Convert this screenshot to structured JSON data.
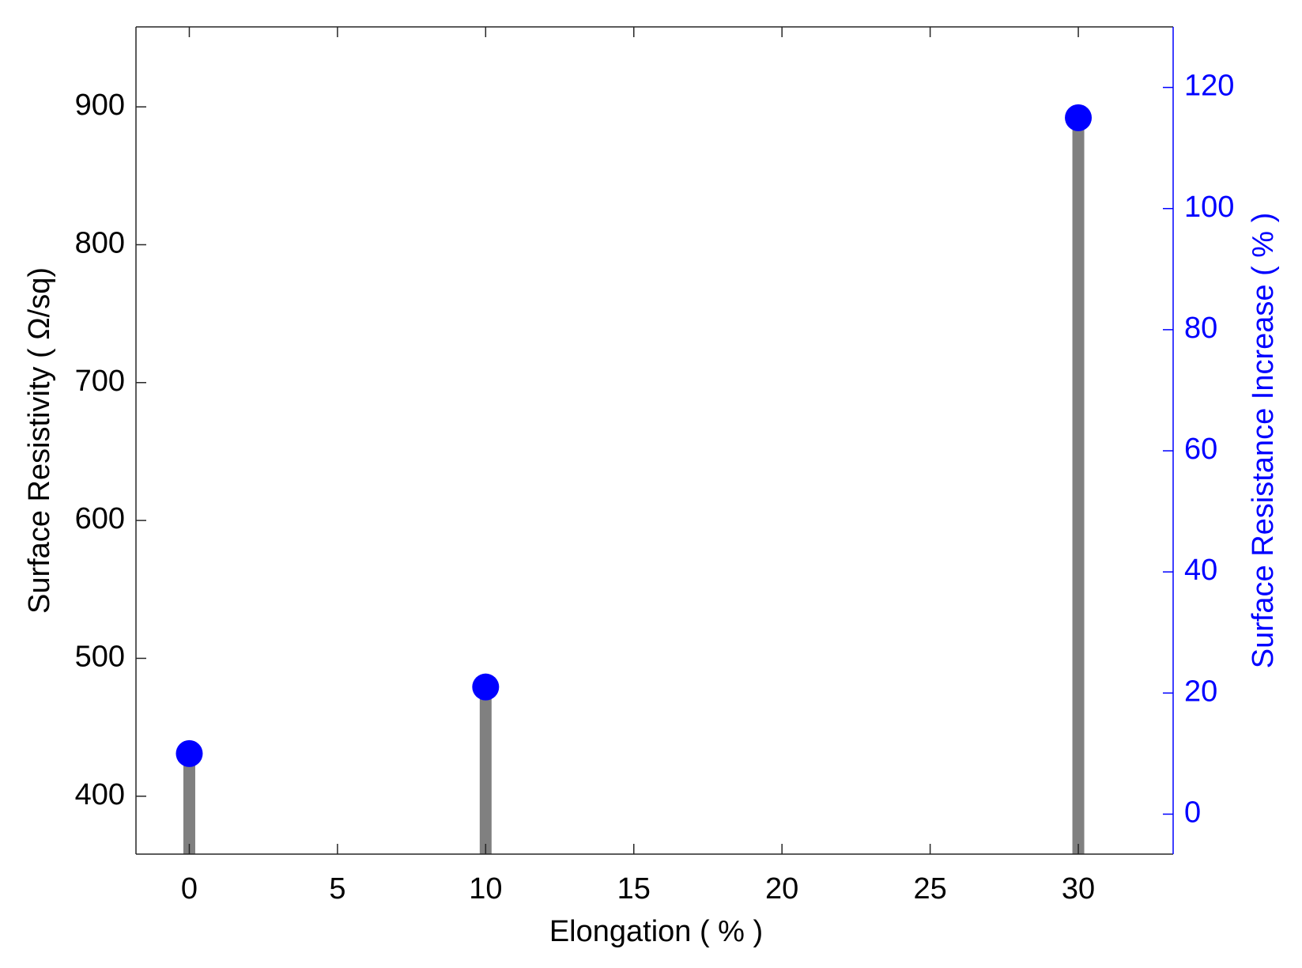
{
  "chart_data": {
    "type": "bar",
    "x_label": "Elongation ( % )",
    "y_label": "Surface Resistivity ( Ω/sq)",
    "y2_label": "Surface Resistance Increase ( % )",
    "x": [
      0,
      10,
      30
    ],
    "series": [
      {
        "style": "bar",
        "color": "#808080",
        "values": [
          431,
          480,
          890
        ]
      },
      {
        "style": "marker",
        "axis": "y2",
        "color": "#0000ff",
        "values": [
          10,
          21,
          115
        ]
      }
    ],
    "xlim": [
      -1.8,
      33.2
    ],
    "xticks": [
      0,
      5,
      10,
      15,
      20,
      25,
      30
    ],
    "ylim": [
      358,
      958
    ],
    "yticks": [
      400,
      500,
      600,
      700,
      800,
      900
    ],
    "y2lim": [
      -6.6,
      130
    ],
    "y2ticks": [
      0,
      20,
      40,
      60,
      80,
      100,
      120
    ],
    "y2_color": "#0000ff",
    "grid": false
  }
}
